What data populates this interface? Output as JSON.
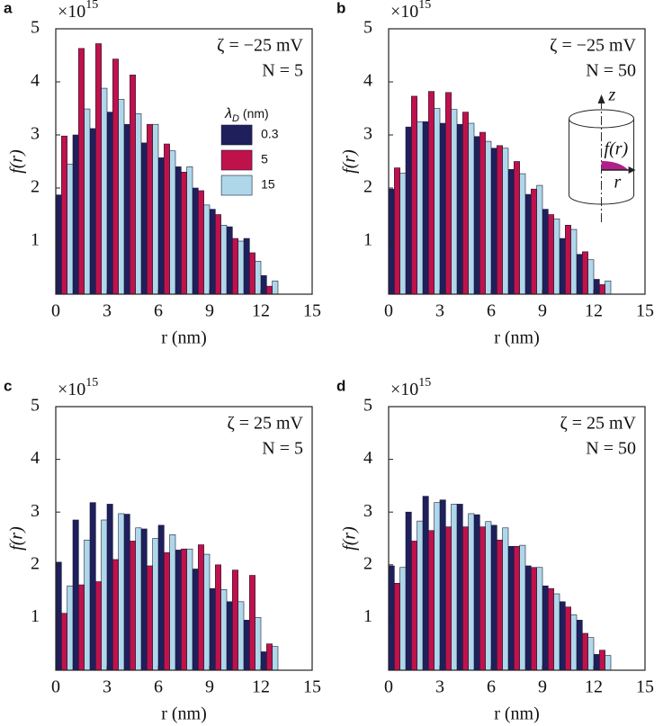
{
  "chart_data": [
    {
      "type": "bar",
      "panel": "a",
      "multiplier": [
        "×10",
        "15"
      ],
      "y_label": "f(r)",
      "x_label": "r (nm)",
      "annotations": [
        "ζ = −25 mV",
        "N = 5"
      ],
      "xlim": [
        0,
        15
      ],
      "xticks": [
        0,
        3,
        6,
        9,
        12,
        15
      ],
      "ylim": [
        0,
        5
      ],
      "yticks": [
        1,
        2,
        3,
        4,
        5
      ],
      "x": [
        0,
        1,
        2,
        3,
        4,
        5,
        6,
        7,
        8,
        9,
        10,
        11,
        12
      ],
      "legend": "upper right",
      "legend_title": [
        "λ",
        "D",
        "(nm)"
      ],
      "series": [
        {
          "name": "0.3",
          "color": "#1f1f5c",
          "values": [
            1.87,
            3.0,
            3.12,
            3.43,
            3.2,
            2.85,
            2.57,
            2.4,
            2.0,
            1.6,
            1.27,
            1.05,
            0.35
          ]
        },
        {
          "name": "5",
          "color": "#c0124a",
          "values": [
            2.98,
            4.63,
            4.72,
            4.43,
            4.13,
            3.2,
            2.83,
            2.3,
            1.95,
            1.5,
            1.05,
            0.78,
            0.15
          ]
        },
        {
          "name": "15",
          "color": "#aed8ea",
          "values": [
            2.45,
            3.49,
            3.88,
            3.67,
            3.4,
            3.2,
            2.7,
            2.4,
            1.68,
            1.3,
            1.0,
            0.62,
            0.25
          ]
        }
      ]
    },
    {
      "type": "bar",
      "panel": "b",
      "multiplier": [
        "×10",
        "15"
      ],
      "y_label": "f(r)",
      "x_label": "r (nm)",
      "annotations": [
        "ζ = −25 mV",
        "N = 50"
      ],
      "xlim": [
        0,
        15
      ],
      "xticks": [
        0,
        3,
        6,
        9,
        12,
        15
      ],
      "ylim": [
        0,
        5
      ],
      "yticks": [
        1,
        2,
        3,
        4,
        5
      ],
      "x": [
        0,
        1,
        2,
        3,
        4,
        5,
        6,
        7,
        8,
        9,
        10,
        11,
        12
      ],
      "inset": {
        "axis": "z",
        "function": "f(r)",
        "radius": "r"
      },
      "series": [
        {
          "color": "#1f1f5c",
          "values": [
            1.98,
            3.15,
            3.25,
            3.22,
            3.2,
            2.97,
            2.75,
            2.35,
            1.88,
            1.6,
            1.05,
            0.75,
            0.28
          ]
        },
        {
          "color": "#c0124a",
          "values": [
            2.38,
            3.73,
            3.82,
            3.8,
            3.43,
            3.05,
            2.8,
            2.5,
            1.98,
            1.5,
            1.3,
            0.8,
            0.18
          ]
        },
        {
          "color": "#aed8ea",
          "values": [
            2.28,
            3.25,
            3.5,
            3.48,
            3.22,
            2.88,
            2.75,
            2.27,
            2.05,
            1.42,
            1.22,
            0.65,
            0.25
          ]
        }
      ]
    },
    {
      "type": "bar",
      "panel": "c",
      "multiplier": [
        "×10",
        "15"
      ],
      "y_label": "f(r)",
      "x_label": "r (nm)",
      "annotations": [
        "ζ = 25 mV",
        "N = 5"
      ],
      "xlim": [
        0,
        15
      ],
      "xticks": [
        0,
        3,
        6,
        9,
        12,
        15
      ],
      "ylim": [
        0,
        5
      ],
      "yticks": [
        1,
        2,
        3,
        4,
        5
      ],
      "x": [
        0,
        1,
        2,
        3,
        4,
        5,
        6,
        7,
        8,
        9,
        10,
        11,
        12
      ],
      "series": [
        {
          "color": "#1f1f5c",
          "values": [
            2.05,
            2.85,
            3.18,
            3.15,
            2.96,
            2.68,
            2.75,
            2.28,
            1.92,
            1.55,
            1.3,
            0.95,
            0.35
          ]
        },
        {
          "color": "#c0124a",
          "values": [
            1.08,
            1.62,
            1.68,
            2.1,
            2.45,
            1.98,
            2.23,
            2.3,
            2.38,
            2.0,
            1.9,
            1.8,
            0.5
          ]
        },
        {
          "color": "#aed8ea",
          "values": [
            1.6,
            2.47,
            2.85,
            2.97,
            2.7,
            2.5,
            2.57,
            2.3,
            2.2,
            1.53,
            1.3,
            1.0,
            0.45
          ]
        }
      ]
    },
    {
      "type": "bar",
      "panel": "d",
      "multiplier": [
        "×10",
        "15"
      ],
      "y_label": "f(r)",
      "x_label": "r (nm)",
      "annotations": [
        "ζ = 25 mV",
        "N = 50"
      ],
      "xlim": [
        0,
        15
      ],
      "xticks": [
        0,
        3,
        6,
        9,
        12,
        15
      ],
      "ylim": [
        0,
        5
      ],
      "yticks": [
        1,
        2,
        3,
        4,
        5
      ],
      "x": [
        0,
        1,
        2,
        3,
        4,
        5,
        6,
        7,
        8,
        9,
        10,
        11,
        12
      ],
      "series": [
        {
          "color": "#1f1f5c",
          "values": [
            1.98,
            3.0,
            3.3,
            3.23,
            3.15,
            2.95,
            2.75,
            2.35,
            1.98,
            1.6,
            1.3,
            0.95,
            0.3
          ]
        },
        {
          "color": "#c0124a",
          "values": [
            1.65,
            2.45,
            2.65,
            2.72,
            2.72,
            2.72,
            2.47,
            2.35,
            1.95,
            1.55,
            1.2,
            0.7,
            0.38
          ]
        },
        {
          "color": "#aed8ea",
          "values": [
            1.95,
            2.83,
            3.18,
            3.15,
            2.97,
            2.82,
            2.7,
            2.37,
            1.95,
            1.45,
            1.05,
            0.62,
            0.28
          ]
        }
      ]
    }
  ]
}
